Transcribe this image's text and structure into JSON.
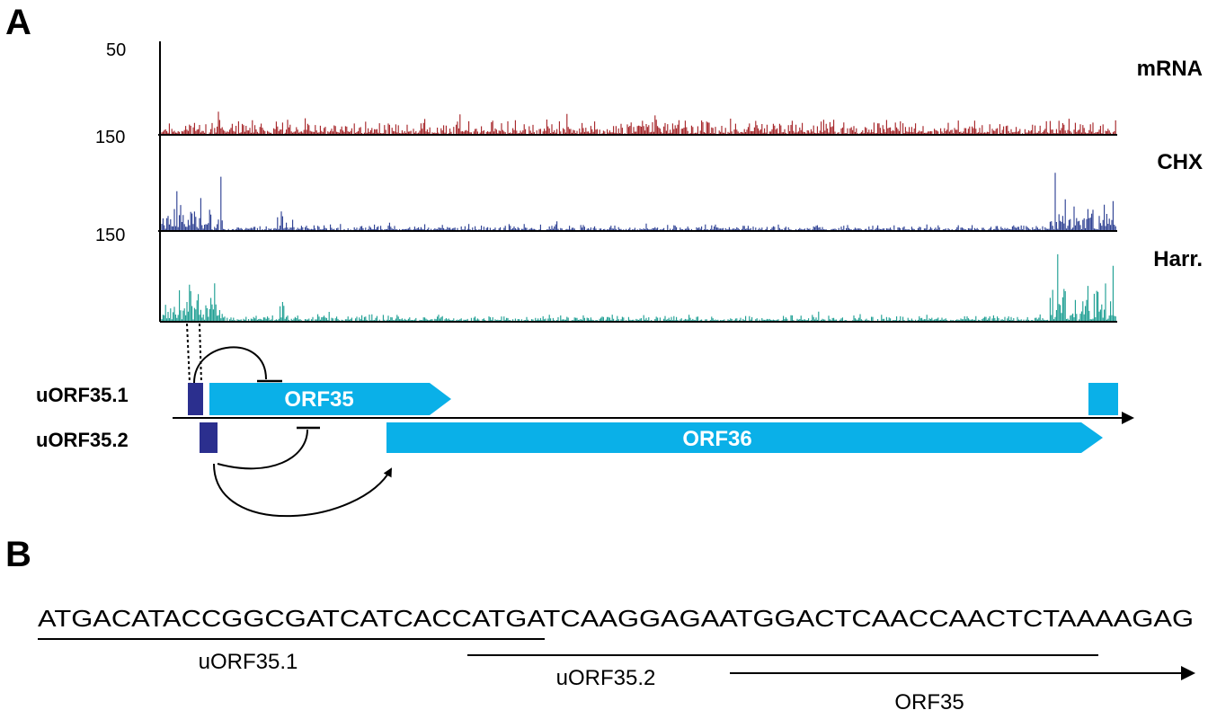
{
  "panels": {
    "a": "A",
    "b": "B"
  },
  "tracks": [
    {
      "name": "mRNA",
      "color": "#A31E22",
      "scale_label": "50"
    },
    {
      "name": "CHX",
      "color": "#273A8F",
      "scale_label": "150"
    },
    {
      "name": "Harr.",
      "color": "#169B8F",
      "scale_label": "150"
    }
  ],
  "orf_colors": {
    "uorf": "#2B2F8E",
    "orf": "#0AB0E8"
  },
  "features": {
    "uorf1_label": "uORF35.1",
    "uorf2_label": "uORF35.2",
    "orf35_label": "ORF35",
    "orf36_label": "ORF36"
  },
  "sequence": {
    "text": "ATGACATACCGGCGATCATCACCATGATCAAGGAGAATGGACTCAACCAACTCTAAAAGAG",
    "uorf1_label": "uORF35.1",
    "uorf2_label": "uORF35.2",
    "orf35_label": "ORF35"
  }
}
